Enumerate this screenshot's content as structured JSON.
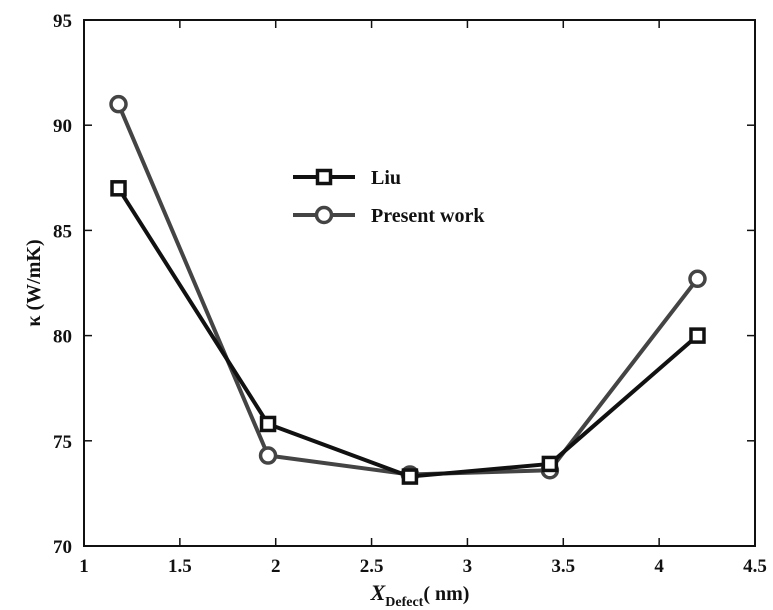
{
  "chart_data": {
    "type": "line",
    "xlabel": {
      "main": "X",
      "sub": "Defect",
      "rest": "( nm)"
    },
    "ylabel": "κ (W/mK)",
    "xlim": [
      1,
      4.5
    ],
    "ylim": [
      70,
      95
    ],
    "xticks": [
      1,
      1.5,
      2,
      2.5,
      3,
      3.5,
      4,
      4.5
    ],
    "xtick_labels": [
      "1",
      "1.5",
      "2",
      "2.5",
      "3",
      "3.5",
      "4",
      "4.5"
    ],
    "yticks": [
      70,
      75,
      80,
      85,
      90,
      95
    ],
    "ytick_labels": [
      "70",
      "75",
      "80",
      "85",
      "90",
      "95"
    ],
    "grid": false,
    "legend_position": "upper-center",
    "series": [
      {
        "name": "Liu",
        "marker": "square",
        "color": "#111111",
        "x": [
          1.18,
          1.96,
          2.7,
          3.43,
          4.2
        ],
        "y": [
          87.0,
          75.8,
          73.3,
          73.9,
          80.0
        ]
      },
      {
        "name": "Present work",
        "marker": "circle",
        "color": "#444444",
        "x": [
          1.18,
          1.96,
          2.7,
          3.43,
          4.2
        ],
        "y": [
          91.0,
          74.3,
          73.4,
          73.6,
          82.7
        ]
      }
    ]
  }
}
